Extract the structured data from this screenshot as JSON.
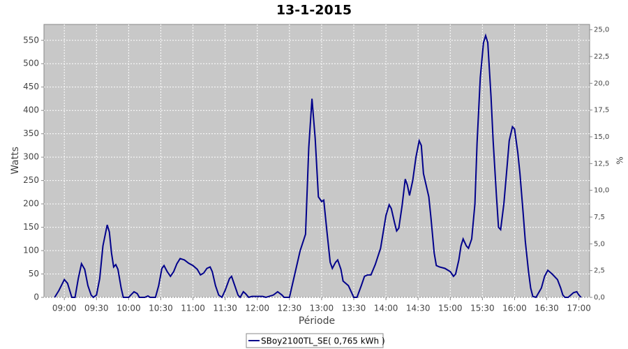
{
  "chart_data": {
    "type": "line",
    "title": "13-1-2015",
    "x_label": "Période",
    "y_label": "Watts",
    "y2_label": "%",
    "x": [
      "08:51",
      "08:55",
      "09:00",
      "09:03",
      "09:07",
      "09:10",
      "09:13",
      "09:16",
      "09:19",
      "09:22",
      "09:25",
      "09:27",
      "09:30",
      "09:33",
      "09:36",
      "09:40",
      "09:42",
      "09:44",
      "09:46",
      "09:48",
      "09:50",
      "09:53",
      "09:55",
      "10:00",
      "10:05",
      "10:08",
      "10:10",
      "10:15",
      "10:18",
      "10:20",
      "10:25",
      "10:28",
      "10:31",
      "10:33",
      "10:36",
      "10:39",
      "10:42",
      "10:45",
      "10:48",
      "10:52",
      "10:56",
      "11:00",
      "11:04",
      "11:07",
      "11:10",
      "11:13",
      "11:16",
      "11:18",
      "11:21",
      "11:24",
      "11:27",
      "11:30",
      "11:34",
      "11:36",
      "11:39",
      "11:42",
      "11:44",
      "11:47",
      "11:49",
      "11:52",
      "11:55",
      "12:05",
      "12:08",
      "12:15",
      "12:19",
      "12:23",
      "12:25",
      "12:30",
      "12:35",
      "12:40",
      "12:45",
      "12:48",
      "12:51",
      "12:54",
      "12:57",
      "13:00",
      "13:02",
      "13:05",
      "13:08",
      "13:10",
      "13:13",
      "13:15",
      "13:18",
      "13:20",
      "13:25",
      "13:28",
      "13:30",
      "13:33",
      "13:37",
      "13:40",
      "13:43",
      "13:46",
      "13:50",
      "13:55",
      "14:00",
      "14:03",
      "14:05",
      "14:08",
      "14:10",
      "14:12",
      "14:15",
      "14:18",
      "14:20",
      "14:22",
      "14:25",
      "14:28",
      "14:31",
      "14:33",
      "14:35",
      "14:40",
      "14:42",
      "14:45",
      "14:47",
      "14:50",
      "14:55",
      "15:00",
      "15:03",
      "15:05",
      "15:08",
      "15:10",
      "15:12",
      "15:15",
      "15:17",
      "15:20",
      "15:23",
      "15:25",
      "15:28",
      "15:31",
      "15:33",
      "15:35",
      "15:38",
      "15:40",
      "15:43",
      "15:45",
      "15:47",
      "15:50",
      "15:53",
      "15:55",
      "15:58",
      "16:00",
      "16:03",
      "16:05",
      "16:08",
      "16:10",
      "16:13",
      "16:15",
      "16:17",
      "16:20",
      "16:25",
      "16:28",
      "16:31",
      "16:35",
      "16:40",
      "16:43",
      "16:45",
      "16:47",
      "16:50",
      "16:55",
      "16:58",
      "17:00",
      "17:02"
    ],
    "series": [
      {
        "name": "SBoy2100TL_SE( 0,765 kWh )",
        "color": "#00008b",
        "values": [
          0,
          15,
          38,
          30,
          0,
          0,
          40,
          72,
          60,
          25,
          5,
          0,
          5,
          40,
          110,
          155,
          140,
          95,
          65,
          70,
          60,
          20,
          0,
          0,
          12,
          8,
          0,
          0,
          3,
          0,
          0,
          25,
          62,
          68,
          55,
          45,
          55,
          72,
          83,
          80,
          73,
          68,
          60,
          48,
          52,
          62,
          65,
          55,
          25,
          5,
          0,
          15,
          40,
          45,
          25,
          5,
          0,
          12,
          8,
          0,
          2,
          2,
          0,
          5,
          12,
          5,
          0,
          0,
          50,
          100,
          135,
          320,
          425,
          340,
          215,
          205,
          208,
          140,
          75,
          62,
          75,
          80,
          60,
          35,
          25,
          10,
          0,
          0,
          25,
          45,
          48,
          48,
          70,
          105,
          175,
          198,
          190,
          160,
          142,
          148,
          195,
          253,
          240,
          218,
          250,
          300,
          335,
          325,
          265,
          215,
          170,
          95,
          68,
          65,
          62,
          55,
          45,
          50,
          80,
          110,
          125,
          110,
          105,
          125,
          200,
          330,
          470,
          545,
          560,
          545,
          430,
          335,
          220,
          150,
          145,
          200,
          280,
          335,
          365,
          360,
          310,
          265,
          180,
          120,
          55,
          20,
          2,
          0,
          20,
          45,
          58,
          50,
          38,
          20,
          5,
          0,
          0,
          10,
          12,
          5,
          0
        ]
      }
    ],
    "xlim": [
      "08:41",
      "17:10"
    ],
    "xticks": [
      "09:00",
      "09:30",
      "10:00",
      "10:30",
      "11:00",
      "11:30",
      "12:00",
      "12:30",
      "13:00",
      "13:30",
      "14:00",
      "14:30",
      "15:00",
      "15:30",
      "16:00",
      "16:30",
      "17:00"
    ],
    "ylim": [
      0,
      584
    ],
    "yticks": [
      0,
      50,
      100,
      150,
      200,
      250,
      300,
      350,
      400,
      450,
      500,
      550
    ],
    "y2lim": [
      0,
      25.5
    ],
    "y2ticks": [
      {
        "value": 0,
        "label": "0,0"
      },
      {
        "value": 2.5,
        "label": "2,5"
      },
      {
        "value": 5,
        "label": "5,0"
      },
      {
        "value": 7.5,
        "label": "7,5"
      },
      {
        "value": 10,
        "label": "10,0"
      },
      {
        "value": 12.5,
        "label": "12,5"
      },
      {
        "value": 15,
        "label": "15,0"
      },
      {
        "value": 17.5,
        "label": "17,5"
      },
      {
        "value": 20,
        "label": "20,0"
      },
      {
        "value": 22.5,
        "label": "22,5"
      },
      {
        "value": 25,
        "label": "25,0"
      }
    ],
    "grid": true,
    "legend": "bottom"
  }
}
